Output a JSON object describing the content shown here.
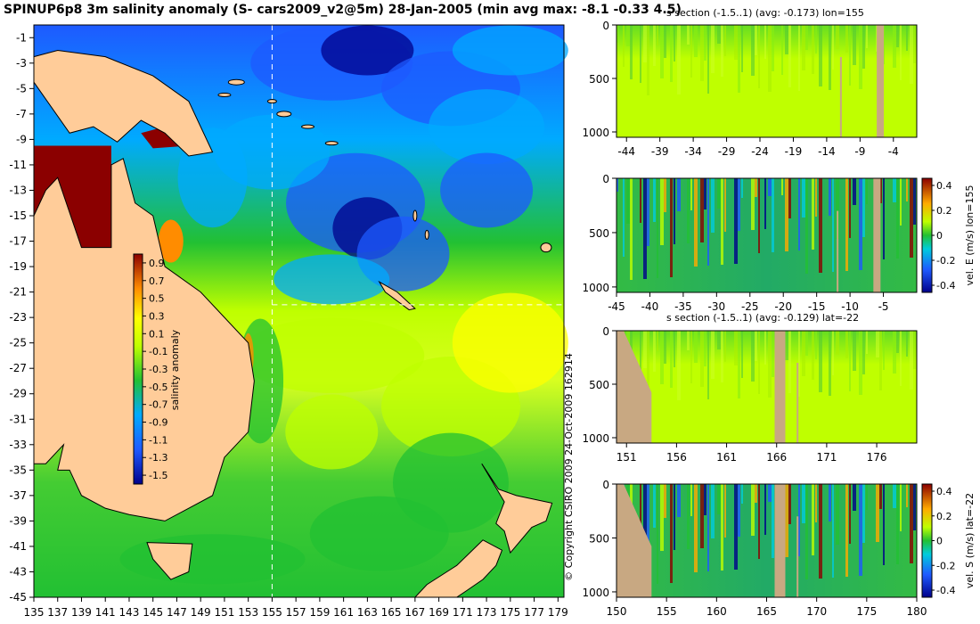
{
  "title": "SPINUP6p8 3m salinity anomaly (S- cars2009_v2@5m) 28-Jan-2005 (min avg max: -8.1 -0.33 4.5)",
  "copyright": "© Copyright CSIRO 2009   24-Oct-2009 162914",
  "colors": {
    "land": "#ffcc99",
    "section_land": "#c8a882",
    "deep_neg": "#00008b",
    "blue": "#1e5aff",
    "cyan": "#00aaff",
    "green": "#22c033",
    "yellow_green": "#bfff00",
    "yellow": "#ffff00",
    "orange": "#ff8c00",
    "red": "#8b0000"
  },
  "chart_data": [
    {
      "type": "heatmap",
      "name": "map",
      "x_ticks": [
        135,
        137,
        139,
        141,
        143,
        145,
        147,
        149,
        151,
        153,
        155,
        157,
        159,
        161,
        163,
        165,
        167,
        169,
        171,
        173,
        175,
        177,
        179
      ],
      "y_ticks": [
        -1,
        -3,
        -5,
        -7,
        -9,
        -11,
        -13,
        -15,
        -17,
        -19,
        -21,
        -23,
        -25,
        -27,
        -29,
        -31,
        -33,
        -35,
        -37,
        -39,
        -41,
        -43,
        -45
      ],
      "xlim": [
        135,
        179.5
      ],
      "ylim": [
        -45,
        0
      ],
      "section_lon": 155,
      "section_lat": -22,
      "colorbar": {
        "label": "salinity anomaly",
        "ticks": [
          0.9,
          0.7,
          0.5,
          0.3,
          0.1,
          -0.1,
          -0.3,
          -0.5,
          -0.7,
          -0.9,
          -1.1,
          -1.3,
          -1.5
        ],
        "range": [
          -1.6,
          1.0
        ]
      }
    },
    {
      "type": "heatmap",
      "name": "panel1",
      "title": "s section (-1.5..1) (avg: -0.173) lon=155",
      "x_ticks": [
        -44,
        -39,
        -34,
        -29,
        -24,
        -19,
        -14,
        -9,
        -4
      ],
      "y_ticks": [
        0,
        500,
        1000
      ],
      "xlim": [
        -45.5,
        -0.5
      ],
      "ylim": [
        0,
        1050
      ]
    },
    {
      "type": "heatmap",
      "name": "panel2",
      "title": "",
      "x_ticks": [
        -45,
        -40,
        -35,
        -30,
        -25,
        -20,
        -15,
        -10,
        -5
      ],
      "y_ticks": [
        0,
        500,
        1000
      ],
      "xlim": [
        -45,
        0
      ],
      "ylim": [
        0,
        1050
      ],
      "colorbar": {
        "label": "vel. E (m/s) lon=155",
        "ticks": [
          "0.4",
          "0.2",
          "0",
          "-0.2",
          "-0.4"
        ]
      }
    },
    {
      "type": "heatmap",
      "name": "panel3",
      "title": "s section (-1.5..1) (avg: -0.129) lat=-22",
      "x_ticks": [
        151,
        156,
        161,
        166,
        171,
        176
      ],
      "y_ticks": [
        0,
        500,
        1000
      ],
      "xlim": [
        150,
        180
      ],
      "ylim": [
        0,
        1050
      ]
    },
    {
      "type": "heatmap",
      "name": "panel4",
      "title": "",
      "x_ticks": [
        150,
        155,
        160,
        165,
        170,
        175,
        180
      ],
      "y_ticks": [
        0,
        500,
        1000
      ],
      "xlim": [
        150,
        180
      ],
      "ylim": [
        0,
        1050
      ],
      "colorbar": {
        "label": "vel. S (m/s) lat=-22",
        "ticks": [
          "0.4",
          "0.2",
          "0",
          "-0.2",
          "-0.4"
        ]
      }
    }
  ]
}
